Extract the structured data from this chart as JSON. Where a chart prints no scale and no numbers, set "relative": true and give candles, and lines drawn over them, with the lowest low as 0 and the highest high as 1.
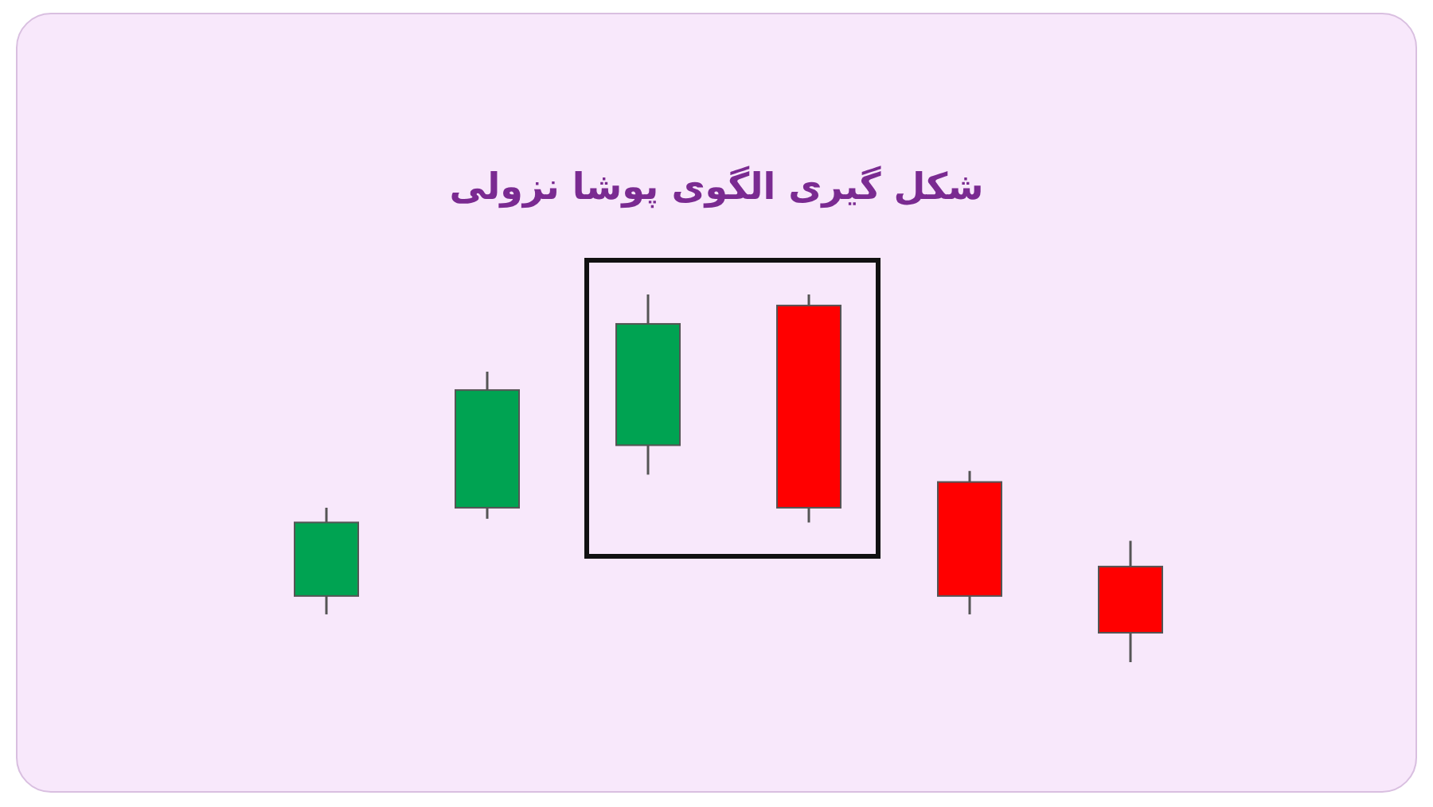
{
  "chart_data": {
    "type": "candlestick",
    "title": "شکل گیری الگوی پوشا نزولی",
    "relative": true,
    "categories": [
      null,
      null,
      null,
      null,
      null,
      null
    ],
    "ohlc": [
      [
        0.18,
        0.42,
        0.13,
        0.38
      ],
      [
        0.42,
        0.79,
        0.39,
        0.74
      ],
      [
        0.59,
        1,
        0.51,
        0.92
      ],
      [
        0.97,
        1,
        0.38,
        0.42
      ],
      [
        0.49,
        0.52,
        0.13,
        0.18
      ],
      [
        0.26,
        0.33,
        0,
        0.08
      ]
    ],
    "colors": [
      "#00a352",
      "#00a352",
      "#00a352",
      "#ff0000",
      "#ff0000",
      "#ff0000"
    ]
  }
}
